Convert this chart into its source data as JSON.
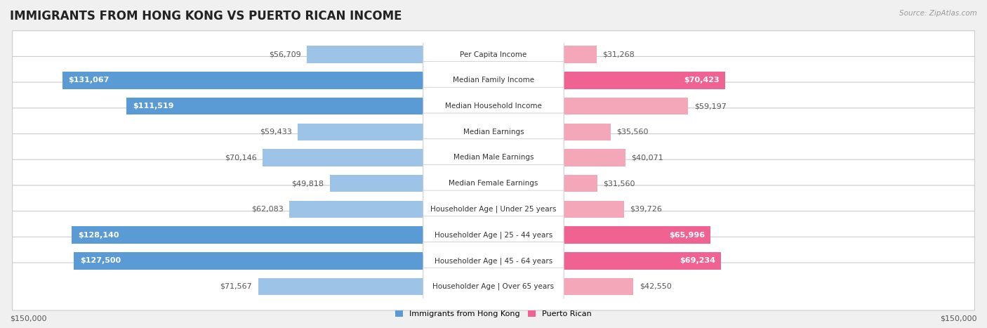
{
  "title": "IMMIGRANTS FROM HONG KONG VS PUERTO RICAN INCOME",
  "source": "Source: ZipAtlas.com",
  "categories": [
    "Per Capita Income",
    "Median Family Income",
    "Median Household Income",
    "Median Earnings",
    "Median Male Earnings",
    "Median Female Earnings",
    "Householder Age | Under 25 years",
    "Householder Age | 25 - 44 years",
    "Householder Age | 45 - 64 years",
    "Householder Age | Over 65 years"
  ],
  "hk_values": [
    56709,
    131067,
    111519,
    59433,
    70146,
    49818,
    62083,
    128140,
    127500,
    71567
  ],
  "pr_values": [
    31268,
    70423,
    59197,
    35560,
    40071,
    31560,
    39726,
    65996,
    69234,
    42550
  ],
  "hk_labels": [
    "$56,709",
    "$131,067",
    "$111,519",
    "$59,433",
    "$70,146",
    "$49,818",
    "$62,083",
    "$128,140",
    "$127,500",
    "$71,567"
  ],
  "pr_labels": [
    "$31,268",
    "$70,423",
    "$59,197",
    "$35,560",
    "$40,071",
    "$31,560",
    "$39,726",
    "$65,996",
    "$69,234",
    "$42,550"
  ],
  "hk_color_dark": "#5b9bd5",
  "hk_color_light": "#9dc3e6",
  "pr_color_dark": "#f06292",
  "pr_color_light": "#f4a7b9",
  "hk_dark_indices": [
    1,
    2,
    7,
    8
  ],
  "pr_dark_indices": [
    1,
    7,
    8
  ],
  "max_value": 150000,
  "x_tick_label_left": "$150,000",
  "x_tick_label_right": "$150,000",
  "legend_hk": "Immigrants from Hong Kong",
  "legend_pr": "Puerto Rican",
  "bg_color": "#f0f0f0",
  "row_bg": "#ffffff",
  "row_border": "#cccccc",
  "label_fontsize": 8,
  "title_fontsize": 12,
  "category_fontsize": 7.5
}
